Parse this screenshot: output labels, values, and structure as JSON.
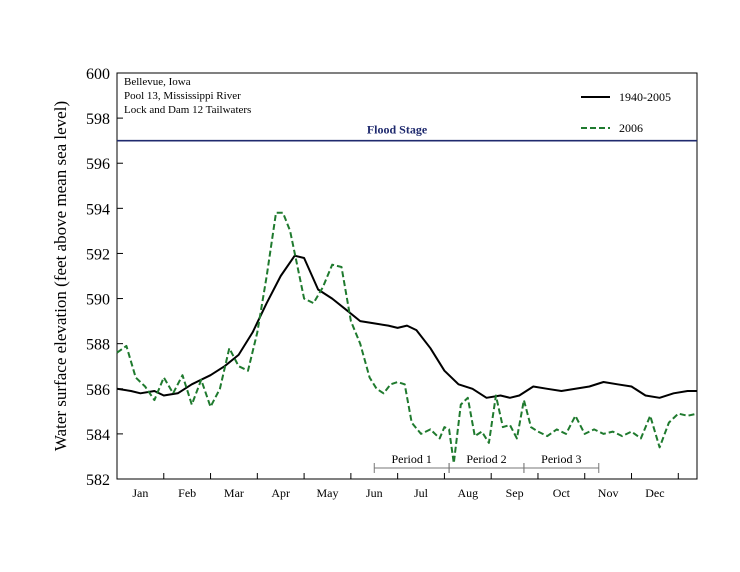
{
  "chart_data": {
    "type": "line",
    "ylabel": "Water surface elevation (feet above mean sea level)",
    "ylim": [
      582,
      600
    ],
    "yticks": [
      582,
      584,
      586,
      588,
      590,
      592,
      594,
      596,
      598,
      600
    ],
    "xlim": [
      0,
      12.4
    ],
    "months": [
      "Jan",
      "Feb",
      "Mar",
      "Apr",
      "May",
      "Jun",
      "Jul",
      "Aug",
      "Sep",
      "Oct",
      "Nov",
      "Dec"
    ],
    "notes": [
      "Bellevue, Iowa",
      "Pool 13, Mississippi River",
      "Lock and Dam 12 Tailwaters"
    ],
    "flood_stage": {
      "label": "Flood Stage",
      "value": 597,
      "color": "#1f2a6e"
    },
    "periods": [
      {
        "label": "Period 1",
        "start": 5.5,
        "end": 7.1
      },
      {
        "label": "Period 2",
        "start": 7.1,
        "end": 8.7
      },
      {
        "label": "Period 3",
        "start": 8.7,
        "end": 10.3
      }
    ],
    "series": [
      {
        "name": "1940-2005",
        "color": "#000000",
        "dash": "solid",
        "x": [
          0,
          0.3,
          0.5,
          0.8,
          1.0,
          1.3,
          1.6,
          2.0,
          2.3,
          2.6,
          2.9,
          3.2,
          3.5,
          3.8,
          4.0,
          4.3,
          4.6,
          4.9,
          5.2,
          5.5,
          5.8,
          6.0,
          6.2,
          6.4,
          6.7,
          7.0,
          7.3,
          7.6,
          7.9,
          8.2,
          8.4,
          8.6,
          8.9,
          9.2,
          9.5,
          9.8,
          10.1,
          10.4,
          10.7,
          11.0,
          11.3,
          11.6,
          11.9,
          12.2,
          12.4
        ],
        "values": [
          586.0,
          585.9,
          585.8,
          585.9,
          585.7,
          585.8,
          586.2,
          586.6,
          587.0,
          587.5,
          588.5,
          589.8,
          591.0,
          591.9,
          591.8,
          590.4,
          590.0,
          589.5,
          589.0,
          588.9,
          588.8,
          588.7,
          588.8,
          588.6,
          587.8,
          586.8,
          586.2,
          586.0,
          585.6,
          585.7,
          585.6,
          585.7,
          586.1,
          586.0,
          585.9,
          586.0,
          586.1,
          586.3,
          586.2,
          586.1,
          585.7,
          585.6,
          585.8,
          585.9,
          585.9
        ],
        "label_on_legend": "1940-2005"
      },
      {
        "name": "2006",
        "color": "#1f7a2e",
        "dash": "dashed",
        "x": [
          0,
          0.2,
          0.4,
          0.6,
          0.8,
          1.0,
          1.2,
          1.4,
          1.6,
          1.8,
          2.0,
          2.2,
          2.4,
          2.6,
          2.8,
          3.0,
          3.2,
          3.4,
          3.55,
          3.7,
          3.85,
          4.0,
          4.2,
          4.4,
          4.6,
          4.8,
          5.0,
          5.2,
          5.4,
          5.55,
          5.7,
          5.85,
          6.0,
          6.15,
          6.3,
          6.5,
          6.7,
          6.9,
          7.0,
          7.1,
          7.2,
          7.35,
          7.5,
          7.65,
          7.8,
          7.95,
          8.1,
          8.25,
          8.4,
          8.55,
          8.7,
          8.85,
          9.0,
          9.2,
          9.4,
          9.6,
          9.8,
          10.0,
          10.2,
          10.4,
          10.6,
          10.8,
          11.0,
          11.2,
          11.4,
          11.6,
          11.8,
          12.0,
          12.2,
          12.4
        ],
        "values": [
          587.6,
          587.9,
          586.5,
          586.1,
          585.5,
          586.5,
          585.8,
          586.6,
          585.3,
          586.4,
          585.2,
          586.0,
          587.8,
          587.0,
          586.8,
          588.5,
          591.0,
          593.8,
          593.8,
          593.0,
          591.5,
          590.0,
          589.8,
          590.5,
          591.5,
          591.4,
          589.0,
          588.0,
          586.5,
          586.0,
          585.8,
          586.2,
          586.3,
          586.2,
          584.5,
          584.0,
          584.2,
          583.8,
          584.3,
          584.2,
          582.7,
          585.3,
          585.6,
          583.9,
          584.1,
          583.6,
          585.7,
          584.3,
          584.4,
          583.8,
          585.5,
          584.3,
          584.1,
          583.9,
          584.2,
          584.0,
          584.8,
          584.0,
          584.2,
          584.0,
          584.1,
          583.9,
          584.1,
          583.8,
          584.8,
          583.4,
          584.5,
          584.9,
          584.8,
          584.9
        ]
      }
    ]
  }
}
